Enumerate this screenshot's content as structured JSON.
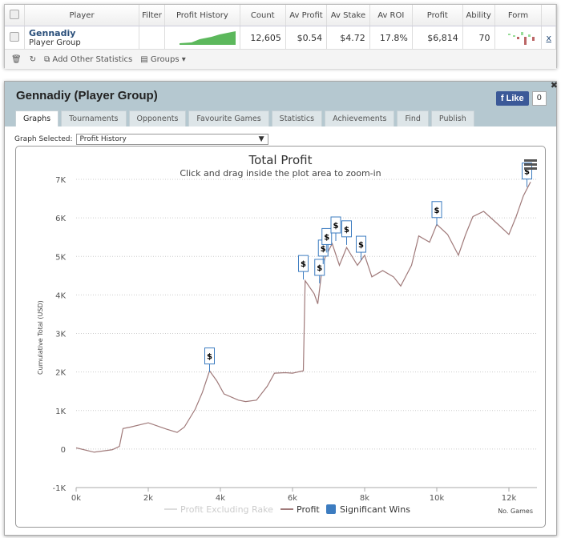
{
  "table": {
    "headers": [
      "Player",
      "Filter",
      "Profit History",
      "Count",
      "Av Profit",
      "Av Stake",
      "Av ROI",
      "Profit",
      "Ability",
      "Form"
    ],
    "row": {
      "name": "Gennadiy",
      "type": "Player Group",
      "filter": "",
      "count": "12,605",
      "av_profit": "$0.54",
      "av_stake": "$4.72",
      "av_roi": "17.8%",
      "profit": "$6,814",
      "ability": "70",
      "remove": "x"
    },
    "footer": {
      "add": "Add Other Statistics",
      "groups": "Groups"
    }
  },
  "panel": {
    "title": "Gennadiy (Player Group)",
    "like": "Like",
    "like_count": "0",
    "tabs": [
      "Graphs",
      "Tournaments",
      "Opponents",
      "Favourite Games",
      "Statistics",
      "Achievements",
      "Find",
      "Publish"
    ],
    "graph_label": "Graph Selected:",
    "graph_value": "Profit History"
  },
  "chart_data": {
    "type": "line",
    "title": "Total Profit",
    "subtitle": "Click and drag inside the plot area to zoom-in",
    "ylabel": "Cumulative Total (USD)",
    "xlabel": "No. Games",
    "xlim": [
      0,
      12600
    ],
    "ylim": [
      -1000,
      7000
    ],
    "yticks": [
      "-1K",
      "0",
      "1K",
      "2K",
      "3K",
      "4K",
      "5K",
      "6K",
      "7K"
    ],
    "xticks": [
      "0k",
      "2k",
      "4k",
      "6k",
      "8k",
      "10k",
      "12k"
    ],
    "legend": [
      "Profit Excluding Rake",
      "Profit",
      "Significant Wins"
    ],
    "colors": {
      "profit": "#a07a7a",
      "excl": "#dddddd",
      "wins": "#3c7cc0"
    },
    "series": [
      {
        "name": "Profit",
        "x": [
          0,
          500,
          1000,
          1200,
          1300,
          1500,
          2000,
          2500,
          2800,
          3000,
          3300,
          3500,
          3700,
          3900,
          4100,
          4500,
          4700,
          5000,
          5300,
          5500,
          5800,
          6000,
          6300,
          6350,
          6600,
          6700,
          6800,
          6900,
          7100,
          7300,
          7500,
          7800,
          8000,
          8200,
          8500,
          8800,
          9000,
          9300,
          9500,
          9800,
          10000,
          10300,
          10600,
          10800,
          11000,
          11300,
          11700,
          12000,
          12200,
          12400,
          12600
        ],
        "y": [
          0,
          -50,
          -50,
          100,
          500,
          600,
          650,
          550,
          400,
          600,
          1000,
          1500,
          2000,
          1800,
          1400,
          1300,
          1200,
          1300,
          1600,
          2000,
          1950,
          2000,
          2000,
          4400,
          4000,
          3800,
          4500,
          5000,
          5300,
          4800,
          5200,
          4800,
          5000,
          4500,
          4600,
          4500,
          4200,
          4800,
          5500,
          5400,
          5800,
          5600,
          5000,
          5600,
          6000,
          6200,
          5800,
          5600,
          6000,
          6600,
          6900
        ]
      }
    ],
    "wins": {
      "x": [
        3700,
        6300,
        6750,
        6850,
        6950,
        7200,
        7500,
        7900,
        10000,
        12500
      ],
      "y": [
        2000,
        4400,
        4300,
        4800,
        5100,
        5400,
        5300,
        4900,
        5800,
        6800
      ],
      "label": "$"
    }
  }
}
